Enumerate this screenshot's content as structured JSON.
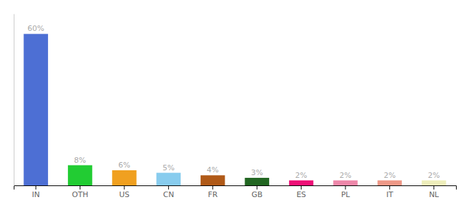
{
  "chart_data": {
    "type": "bar",
    "categories": [
      "IN",
      "OTH",
      "US",
      "CN",
      "FR",
      "GB",
      "ES",
      "PL",
      "IT",
      "NL"
    ],
    "values": [
      60,
      8,
      6,
      5,
      4,
      3,
      2,
      2,
      2,
      2
    ],
    "value_labels": [
      "60%",
      "8%",
      "6%",
      "5%",
      "4%",
      "3%",
      "2%",
      "2%",
      "2%",
      "2%"
    ],
    "colors": [
      "#4d6fd4",
      "#22cc33",
      "#f0a020",
      "#88ccee",
      "#b05a18",
      "#226622",
      "#ee1177",
      "#ee88aa",
      "#ee9988",
      "#eeeebb"
    ],
    "ylim": [
      0,
      68
    ],
    "grid": false,
    "data_labels": true,
    "tick_labels": "x"
  }
}
